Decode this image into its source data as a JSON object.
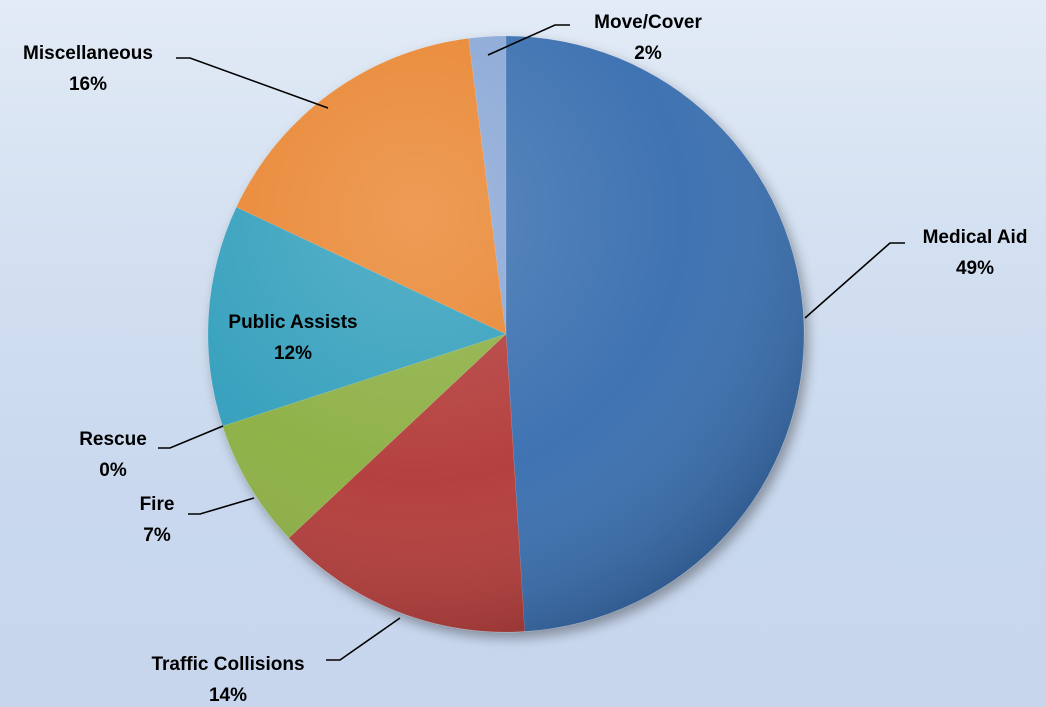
{
  "chart_data": {
    "type": "pie",
    "title": "",
    "unit": "%",
    "slices": [
      {
        "label": "Medical Aid",
        "value": 49,
        "value_label": "49%",
        "color": "#3b6fb0"
      },
      {
        "label": "Traffic Collisions",
        "value": 14,
        "value_label": "14%",
        "color": "#b33c3a"
      },
      {
        "label": "Fire",
        "value": 7,
        "value_label": "7%",
        "color": "#8db044"
      },
      {
        "label": "Rescue",
        "value": 0,
        "value_label": "0%",
        "color": "#6c4a9a"
      },
      {
        "label": "Public Assists",
        "value": 12,
        "value_label": "12%",
        "color": "#35a0bd"
      },
      {
        "label": "Miscellaneous",
        "value": 16,
        "value_label": "16%",
        "color": "#e98630"
      },
      {
        "label": "Move/Cover",
        "value": 2,
        "value_label": "2%",
        "color": "#8aa8d6"
      }
    ],
    "start": "12 o'clock",
    "direction": "clockwise",
    "legend": "none",
    "data_labels": "category name and percentage, outside with leader lines (Public Assists inside)"
  }
}
